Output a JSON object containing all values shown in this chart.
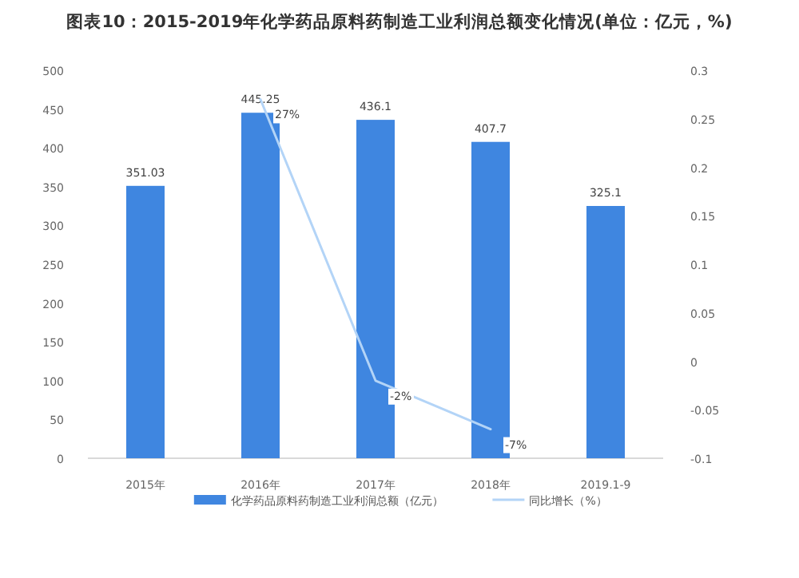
{
  "chart_data": {
    "type": "bar",
    "title": "图表10：2015-2019年化学药品原料药制造工业利润总额变化情况(单位：亿元，%)",
    "categories": [
      "2015年",
      "2016年",
      "2017年",
      "2018年",
      "2019.1-9"
    ],
    "series": [
      {
        "name": "化学药品原料药制造工业利润总额（亿元）",
        "color": "#3f86e0",
        "values": [
          351.03,
          445.25,
          436.1,
          407.7,
          325.1
        ],
        "value_labels": [
          "351.03",
          "445.25",
          "436.1",
          "407.7",
          "325.1"
        ]
      },
      {
        "name": "同比增长（%）",
        "type": "line",
        "axis": "y2",
        "color": "#b3d4f7",
        "values": [
          null,
          0.27,
          -0.02,
          -0.07,
          null
        ],
        "value_labels": [
          null,
          "27%",
          "-2%",
          "-7%",
          null
        ]
      }
    ],
    "ylim": [
      0,
      500
    ],
    "yticks": [
      0,
      50,
      100,
      150,
      200,
      250,
      300,
      350,
      400,
      450,
      500
    ],
    "y2lim": [
      -0.1,
      0.3
    ],
    "y2ticks": [
      -0.1,
      -0.05,
      0,
      0.05,
      0.1,
      0.15,
      0.2,
      0.25,
      0.3
    ],
    "grid": false,
    "legend": "bottom"
  }
}
